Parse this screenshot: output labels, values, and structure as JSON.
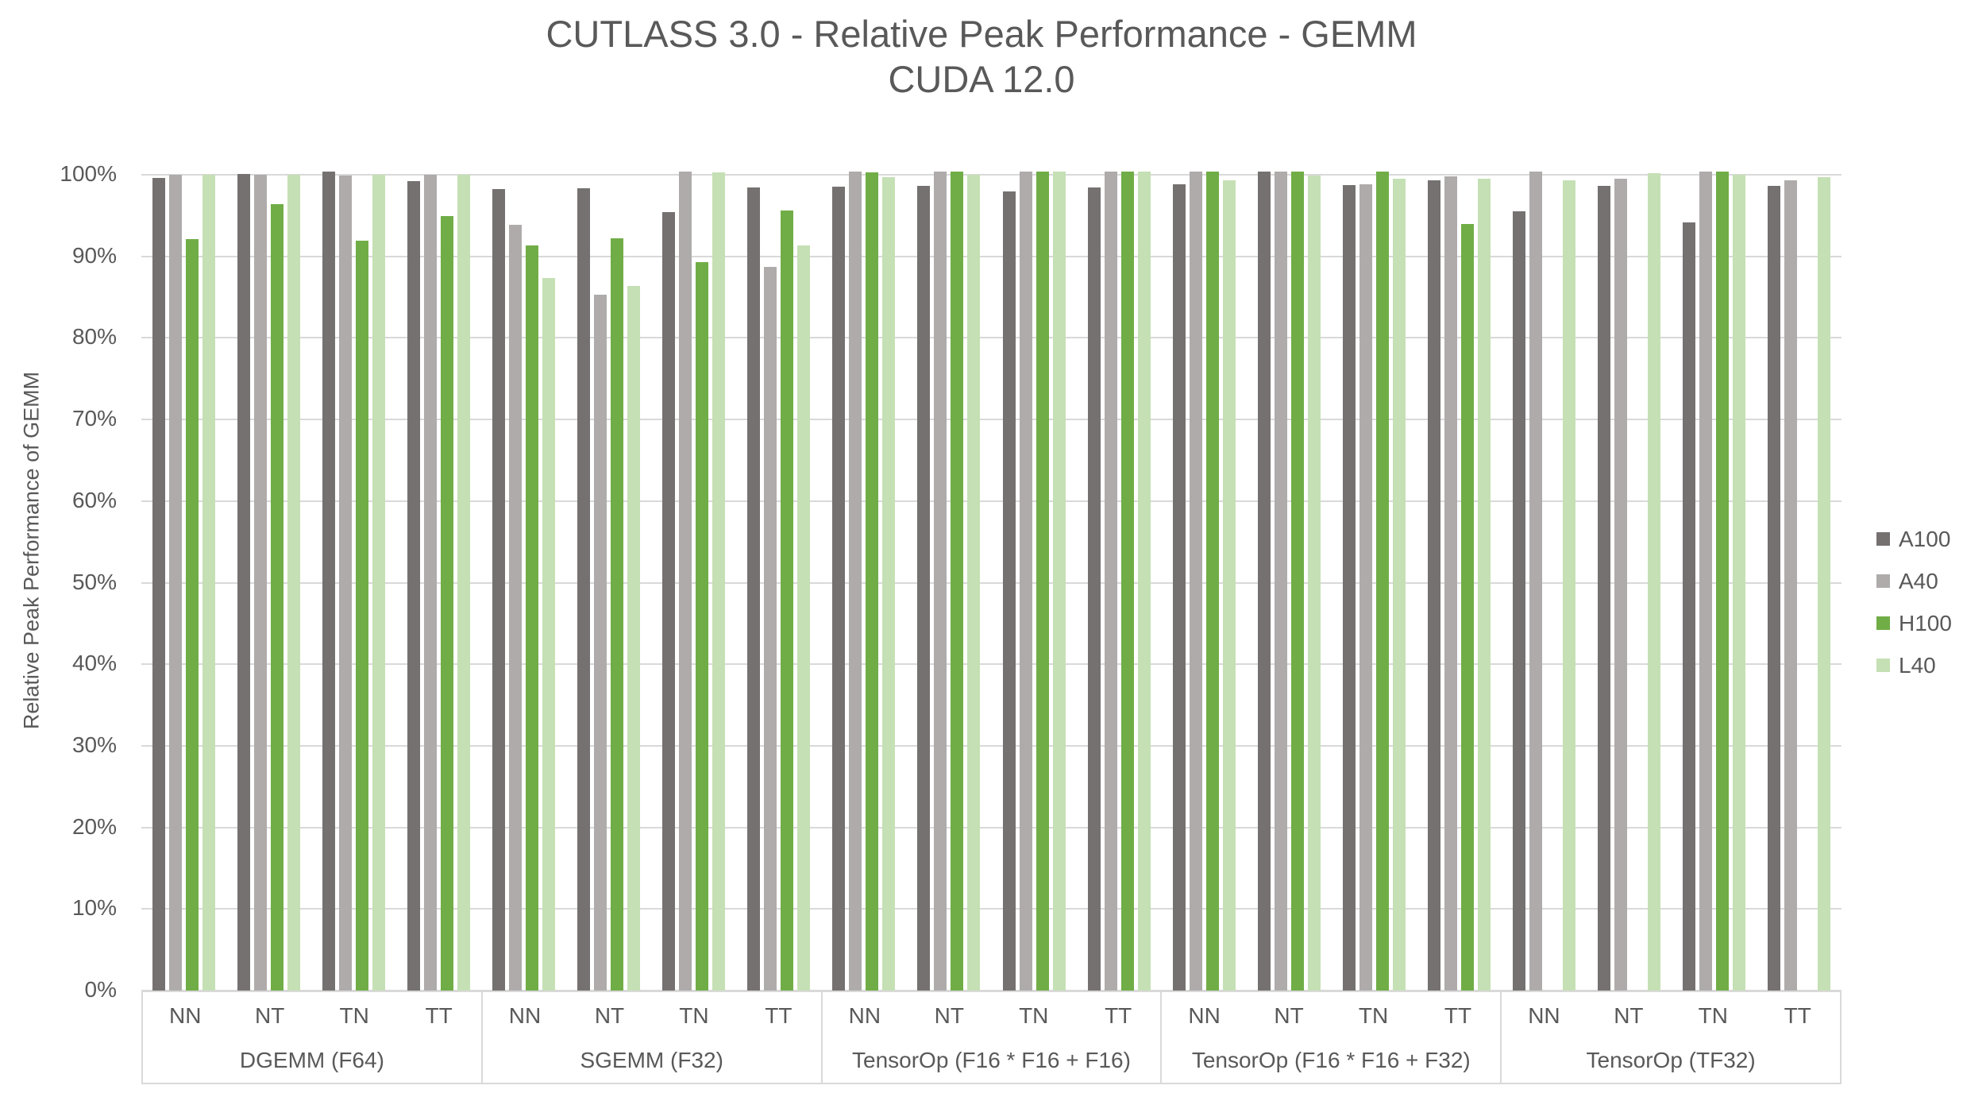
{
  "title": {
    "line1": "CUTLASS 3.0 - Relative Peak Performance - GEMM",
    "line2": "CUDA 12.0"
  },
  "chart_data": {
    "type": "bar",
    "title": "CUTLASS 3.0 - Relative Peak Performance - GEMM CUDA 12.0",
    "ylabel": "Relative Peak Performance of GEMM",
    "unit": "%",
    "ylim": [
      0,
      100
    ],
    "y_tick_step": 10,
    "y_tick_labels": [
      "0%",
      "10%",
      "20%",
      "30%",
      "40%",
      "50%",
      "60%",
      "70%",
      "80%",
      "90%",
      "100%"
    ],
    "grid": "horizontal",
    "legend_position": "right",
    "groups": [
      "DGEMM (F64)",
      "SGEMM (F32)",
      "TensorOp (F16 * F16 + F16)",
      "TensorOp (F16 * F16 + F32)",
      "TensorOp (TF32)"
    ],
    "categories": [
      "NN",
      "NT",
      "TN",
      "TT"
    ],
    "series": [
      {
        "name": "A100",
        "color": "#767171",
        "values": [
          [
            99.6,
            100.1,
            100.4,
            99.2
          ],
          [
            98.2,
            98.3,
            95.4,
            98.4
          ],
          [
            98.5,
            98.6,
            98.0,
            98.4
          ],
          [
            98.8,
            100.4,
            98.7,
            99.3
          ],
          [
            95.5,
            98.6,
            94.2,
            98.6
          ]
        ]
      },
      {
        "name": "A40",
        "color": "#AFABAB",
        "values": [
          [
            100.0,
            100.0,
            99.9,
            100.0
          ],
          [
            93.9,
            85.3,
            100.4,
            88.7
          ],
          [
            100.4,
            100.4,
            100.4,
            100.4
          ],
          [
            100.4,
            100.4,
            98.8,
            99.8
          ],
          [
            100.4,
            99.5,
            100.4,
            99.3
          ]
        ]
      },
      {
        "name": "H100",
        "color": "#70AD47",
        "values": [
          [
            92.1,
            96.4,
            91.9,
            94.9
          ],
          [
            91.3,
            92.2,
            89.3,
            95.6
          ],
          [
            100.3,
            100.4,
            100.4,
            100.4
          ],
          [
            100.4,
            100.4,
            100.4,
            94.0
          ],
          [
            null,
            null,
            100.4,
            null
          ]
        ]
      },
      {
        "name": "L40",
        "color": "#C5E0B4",
        "values": [
          [
            100.0,
            100.0,
            100.0,
            100.0
          ],
          [
            87.3,
            86.4,
            100.3,
            91.3
          ],
          [
            99.7,
            100.0,
            100.4,
            100.4
          ],
          [
            99.3,
            99.9,
            99.5,
            99.5
          ],
          [
            99.3,
            100.2,
            100.0,
            99.7
          ]
        ]
      }
    ]
  }
}
